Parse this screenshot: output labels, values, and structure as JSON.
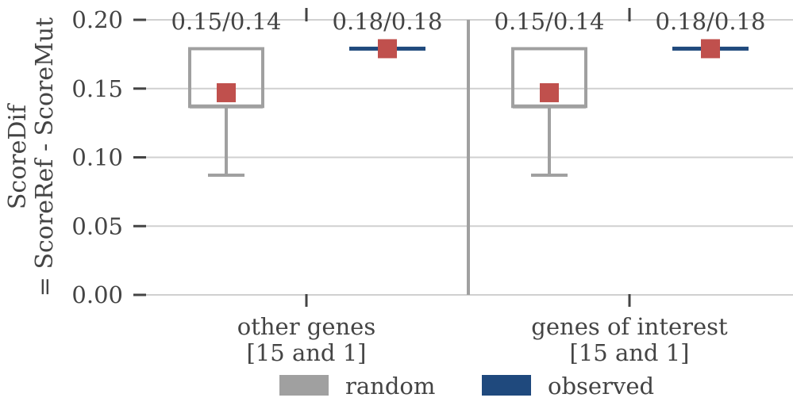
{
  "chart_data": {
    "type": "box",
    "title": "",
    "ylabel_lines": [
      "ScoreDif",
      "= ScoreRef - ScoreMut"
    ],
    "xlabel": "",
    "ylim": [
      0,
      0.2
    ],
    "yticks": [
      0.0,
      0.05,
      0.1,
      0.15,
      0.2
    ],
    "ytick_labels": [
      "0.00",
      "0.05",
      "0.10",
      "0.15",
      "0.20"
    ],
    "grid": "horizontal",
    "groups": [
      {
        "label_lines": [
          "other genes",
          "[15 and 1]"
        ],
        "random": {
          "whisker_low": 0.087,
          "q1": 0.137,
          "q3": 0.179,
          "median": 0.137,
          "mean": 0.147,
          "annotation": "0.15/0.14"
        },
        "observed": {
          "value": 0.179,
          "mean": 0.179,
          "annotation": "0.18/0.18"
        }
      },
      {
        "label_lines": [
          "genes of interest",
          "[15 and 1]"
        ],
        "random": {
          "whisker_low": 0.087,
          "q1": 0.137,
          "q3": 0.179,
          "median": 0.137,
          "mean": 0.147,
          "annotation": "0.15/0.14"
        },
        "observed": {
          "value": 0.179,
          "mean": 0.179,
          "annotation": "0.18/0.18"
        }
      }
    ],
    "legend": {
      "placement": "bottom-center",
      "entries": [
        {
          "name": "random",
          "color": "#a0a0a0"
        },
        {
          "name": "observed",
          "color": "#1f497d"
        }
      ]
    },
    "colors": {
      "random": "#a0a0a0",
      "observed": "#1f497d",
      "mean_marker": "#c0504d",
      "grid": "#d0d0d0",
      "text": "#444444",
      "tick": "#444444",
      "divider": "#a0a0a0"
    }
  }
}
